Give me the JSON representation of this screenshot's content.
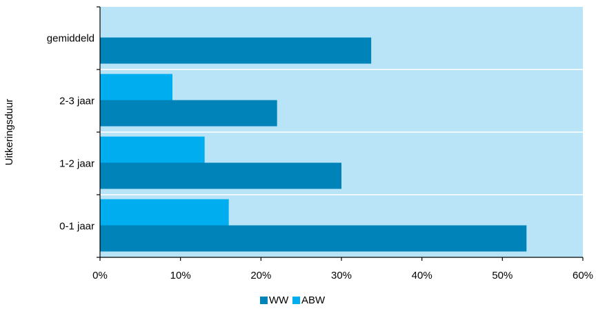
{
  "chart_data": {
    "type": "bar",
    "orientation": "horizontal",
    "title": "",
    "xlabel": "",
    "ylabel": "Uitkeringsduur",
    "categories": [
      "gemiddeld",
      "2-3 jaar",
      "1-2 jaar",
      "0-1 jaar"
    ],
    "series": [
      {
        "name": "WW",
        "color": "#0083B8",
        "values": [
          33.7,
          22.0,
          30.0,
          53.0
        ]
      },
      {
        "name": "ABW",
        "color": "#00ADEF",
        "values": [
          null,
          9.0,
          13.0,
          16.0
        ]
      }
    ],
    "xlim": [
      0,
      60
    ],
    "xticks": [
      "0%",
      "10%",
      "20%",
      "30%",
      "40%",
      "50%",
      "60%"
    ],
    "legend_position": "bottom-center",
    "plot_background": "#B9E4F7",
    "grid": true
  }
}
